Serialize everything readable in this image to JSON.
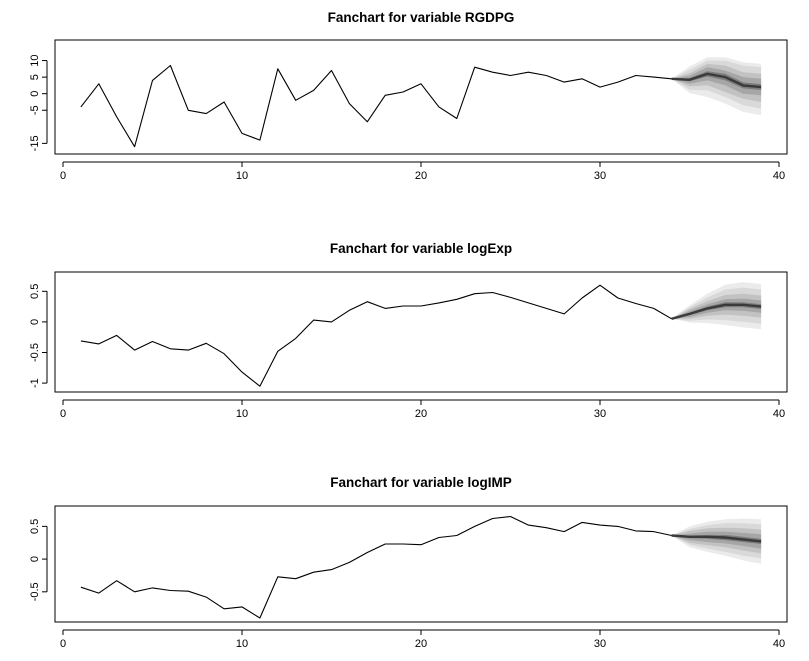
{
  "chart_data": [
    {
      "type": "line",
      "title": "Fanchart for variable RGDPG",
      "xlabel": "",
      "ylabel": "",
      "xlim": [
        0,
        40
      ],
      "ylim": [
        -17,
        15
      ],
      "x_ticks": [
        0,
        10,
        20,
        30,
        40
      ],
      "y_ticks": [
        -15,
        -5,
        0,
        5,
        10
      ],
      "grid": false,
      "series": [
        {
          "x": [
            1,
            2,
            3,
            4,
            5,
            6,
            7,
            8,
            9,
            10,
            11,
            12,
            13,
            14,
            15,
            16,
            17,
            18,
            19,
            20,
            21,
            22,
            23,
            24,
            25,
            26,
            27,
            28,
            29,
            30,
            31,
            32,
            33,
            34
          ],
          "values": [
            -4,
            3,
            -7,
            -16,
            4,
            8.5,
            -5,
            -6,
            -2.5,
            -12,
            -14,
            7.5,
            -2,
            1,
            7,
            -3,
            -8.5,
            -0.5,
            0.5,
            3,
            -4,
            -7.5,
            8,
            6.5,
            5.5,
            6.5,
            5.5,
            3.5,
            4.5,
            2,
            3.5,
            5.5,
            5,
            4.5
          ]
        }
      ],
      "forecast": {
        "x": [
          34,
          35,
          36,
          37,
          38,
          39
        ],
        "median": [
          4.5,
          4.2,
          6,
          5,
          2.5,
          2
        ],
        "bands": [
          {
            "lower": [
              4.5,
              0.2,
              -1,
              -3,
              -5.5,
              -6.5
            ],
            "upper": [
              4.5,
              8.2,
              11,
              11,
              9.5,
              9
            ]
          },
          {
            "lower": [
              4.5,
              1.2,
              1,
              -1,
              -3.5,
              -4.5
            ],
            "upper": [
              4.5,
              7.2,
              10,
              10,
              8.5,
              8
            ]
          },
          {
            "lower": [
              4.5,
              2.2,
              2.5,
              0.5,
              -1.5,
              -2.5
            ],
            "upper": [
              4.5,
              6.2,
              9,
              8.5,
              6.5,
              6
            ]
          },
          {
            "lower": [
              4.5,
              3,
              4,
              2.5,
              0,
              -0.5
            ],
            "upper": [
              4.5,
              5.4,
              8,
              7,
              5,
              4.5
            ]
          },
          {
            "lower": [
              4.5,
              3.7,
              5.2,
              4,
              1.6,
              1.1
            ],
            "upper": [
              4.5,
              4.7,
              6.8,
              6,
              3.4,
              2.9
            ]
          }
        ]
      }
    },
    {
      "type": "line",
      "title": "Fanchart for variable logExp",
      "xlabel": "",
      "ylabel": "",
      "xlim": [
        0,
        40
      ],
      "ylim": [
        -1.08,
        0.75
      ],
      "x_ticks": [
        0,
        10,
        20,
        30,
        40
      ],
      "y_ticks": [
        -1.0,
        -0.5,
        0.0,
        0.5
      ],
      "grid": false,
      "series": [
        {
          "x": [
            1,
            2,
            3,
            4,
            5,
            6,
            7,
            8,
            9,
            10,
            11,
            12,
            13,
            14,
            15,
            16,
            17,
            18,
            19,
            20,
            21,
            22,
            23,
            24,
            25,
            26,
            27,
            28,
            29,
            30,
            31,
            32,
            33,
            34
          ],
          "values": [
            -0.31,
            -0.36,
            -0.22,
            -0.46,
            -0.32,
            -0.44,
            -0.46,
            -0.35,
            -0.52,
            -0.82,
            -1.05,
            -0.48,
            -0.27,
            0.03,
            0,
            0.19,
            0.33,
            0.22,
            0.26,
            0.26,
            0.31,
            0.37,
            0.46,
            0.48,
            0.4,
            0.31,
            0.22,
            0.13,
            0.39,
            0.6,
            0.39,
            0.3,
            0.22,
            0.05
          ]
        }
      ],
      "forecast": {
        "x": [
          34,
          35,
          36,
          37,
          38,
          39
        ],
        "median": [
          0.05,
          0.13,
          0.22,
          0.28,
          0.28,
          0.25
        ],
        "bands": [
          {
            "lower": [
              0.05,
              -0.01,
              -0.02,
              -0.05,
              -0.09,
              -0.12
            ],
            "upper": [
              0.05,
              0.27,
              0.46,
              0.61,
              0.65,
              0.62
            ]
          },
          {
            "lower": [
              0.05,
              0.02,
              0.04,
              0.03,
              0,
              -0.03
            ],
            "upper": [
              0.05,
              0.24,
              0.4,
              0.53,
              0.56,
              0.53
            ]
          },
          {
            "lower": [
              0.05,
              0.05,
              0.1,
              0.12,
              0.1,
              0.07
            ],
            "upper": [
              0.05,
              0.21,
              0.34,
              0.44,
              0.46,
              0.43
            ]
          },
          {
            "lower": [
              0.05,
              0.08,
              0.15,
              0.19,
              0.18,
              0.15
            ],
            "upper": [
              0.05,
              0.18,
              0.29,
              0.37,
              0.38,
              0.35
            ]
          },
          {
            "lower": [
              0.05,
              0.11,
              0.19,
              0.24,
              0.24,
              0.21
            ],
            "upper": [
              0.05,
              0.15,
              0.25,
              0.32,
              0.32,
              0.29
            ]
          }
        ]
      }
    },
    {
      "type": "line",
      "title": "Fanchart for variable logIMP",
      "xlabel": "",
      "ylabel": "",
      "xlim": [
        0,
        40
      ],
      "ylim": [
        -0.9,
        0.75
      ],
      "x_ticks": [
        0,
        10,
        20,
        30,
        40
      ],
      "y_ticks": [
        -0.5,
        0.0,
        0.5
      ],
      "grid": false,
      "series": [
        {
          "x": [
            1,
            2,
            3,
            4,
            5,
            6,
            7,
            8,
            9,
            10,
            11,
            12,
            13,
            14,
            15,
            16,
            17,
            18,
            19,
            20,
            21,
            22,
            23,
            24,
            25,
            26,
            27,
            28,
            29,
            30,
            31,
            32,
            33,
            34
          ],
          "values": [
            -0.43,
            -0.52,
            -0.33,
            -0.5,
            -0.44,
            -0.48,
            -0.49,
            -0.58,
            -0.76,
            -0.73,
            -0.9,
            -0.27,
            -0.3,
            -0.2,
            -0.16,
            -0.05,
            0.1,
            0.23,
            0.23,
            0.22,
            0.33,
            0.36,
            0.5,
            0.62,
            0.65,
            0.52,
            0.48,
            0.42,
            0.56,
            0.52,
            0.5,
            0.43,
            0.42,
            0.36
          ]
        }
      ],
      "forecast": {
        "x": [
          34,
          35,
          36,
          37,
          38,
          39
        ],
        "median": [
          0.36,
          0.34,
          0.34,
          0.33,
          0.3,
          0.27
        ],
        "bands": [
          {
            "lower": [
              0.36,
              0.18,
              0.11,
              0.05,
              -0.02,
              -0.07
            ],
            "upper": [
              0.36,
              0.5,
              0.57,
              0.61,
              0.62,
              0.61
            ]
          },
          {
            "lower": [
              0.36,
              0.22,
              0.16,
              0.11,
              0.05,
              0.01
            ],
            "upper": [
              0.36,
              0.46,
              0.52,
              0.55,
              0.55,
              0.53
            ]
          },
          {
            "lower": [
              0.36,
              0.25,
              0.21,
              0.18,
              0.13,
              0.09
            ],
            "upper": [
              0.36,
              0.43,
              0.47,
              0.48,
              0.47,
              0.45
            ]
          },
          {
            "lower": [
              0.36,
              0.29,
              0.26,
              0.24,
              0.2,
              0.16
            ],
            "upper": [
              0.36,
              0.39,
              0.42,
              0.42,
              0.4,
              0.38
            ]
          },
          {
            "lower": [
              0.36,
              0.32,
              0.31,
              0.29,
              0.26,
              0.23
            ],
            "upper": [
              0.36,
              0.36,
              0.37,
              0.37,
              0.34,
              0.31
            ]
          }
        ]
      }
    }
  ],
  "colors": {
    "line": "#000000",
    "median": "#3a3a3a",
    "fan_shades": [
      "#ebebeb",
      "#d9d9d9",
      "#c2c2c2",
      "#a6a6a6",
      "#7d7d7d"
    ]
  }
}
